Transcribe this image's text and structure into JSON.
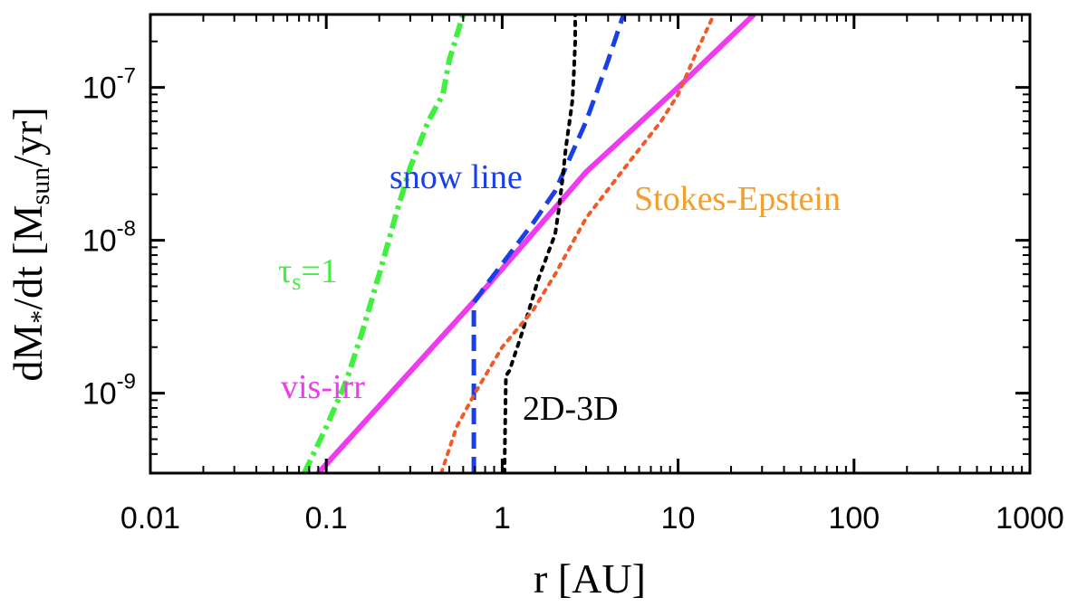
{
  "chart_data": {
    "type": "line",
    "title": "",
    "xlabel": "r [AU]",
    "ylabel_parts": [
      "dM",
      "*",
      "/dt [M",
      "sun",
      "/yr]"
    ],
    "xscale": "log",
    "yscale": "log",
    "xlim": [
      0.01,
      1000
    ],
    "ylim": [
      3e-10,
      3e-07
    ],
    "grid": false,
    "x_ticks": [
      0.01,
      0.1,
      1,
      10,
      100,
      1000
    ],
    "x_tick_labels": [
      "0.01",
      "0.1",
      "1",
      "10",
      "100",
      "1000"
    ],
    "y_ticks": [
      1e-09,
      1e-08,
      1e-07
    ],
    "y_tick_labels": [
      {
        "base": "10",
        "exp": "-9"
      },
      {
        "base": "10",
        "exp": "-8"
      },
      {
        "base": "10",
        "exp": "-7"
      }
    ],
    "series": [
      {
        "name": "vis-irr",
        "color": "#ee3bee",
        "style": "solid",
        "points": [
          [
            0.09,
            3e-10
          ],
          [
            0.68,
            3.9e-09
          ],
          [
            3.0,
            2.8e-08
          ],
          [
            10,
            1e-07
          ],
          [
            27,
            3e-07
          ]
        ]
      },
      {
        "name": "snow line",
        "color": "#1a3ee8",
        "style": "dashed",
        "points": [
          [
            0.69,
            3e-10
          ],
          [
            0.69,
            3.9e-09
          ],
          [
            0.8,
            5e-09
          ],
          [
            1.0,
            7e-09
          ],
          [
            1.5,
            1.3e-08
          ],
          [
            2.0,
            2.1e-08
          ],
          [
            3.0,
            6e-08
          ],
          [
            4.0,
            1.5e-07
          ],
          [
            4.9,
            3e-07
          ]
        ]
      },
      {
        "name": "2D-3D",
        "color": "#000000",
        "style": "dotted",
        "points": [
          [
            1.03,
            3e-10
          ],
          [
            1.05,
            1.3e-09
          ],
          [
            1.1,
            1.4e-09
          ],
          [
            1.3,
            2.5e-09
          ],
          [
            1.6,
            5.5e-09
          ],
          [
            2.0,
            1.1e-08
          ],
          [
            2.1,
            1.6e-08
          ],
          [
            2.2,
            2.5e-08
          ],
          [
            2.3,
            4e-08
          ],
          [
            2.5,
            8e-08
          ],
          [
            2.55,
            1.2e-07
          ],
          [
            2.6,
            2e-07
          ],
          [
            2.6,
            3e-07
          ]
        ]
      },
      {
        "name": "Stokes-Epstein",
        "color": "#f05a28",
        "style": "dotted",
        "points": [
          [
            0.45,
            3e-10
          ],
          [
            0.55,
            6e-10
          ],
          [
            0.7,
            1e-09
          ],
          [
            1.0,
            2e-09
          ],
          [
            1.5,
            3.5e-09
          ],
          [
            2.0,
            6e-09
          ],
          [
            3.0,
            1.4e-08
          ],
          [
            5.0,
            3e-08
          ],
          [
            8.0,
            6e-08
          ],
          [
            10,
            9e-08
          ],
          [
            13,
            1.8e-07
          ],
          [
            16,
            3e-07
          ]
        ]
      },
      {
        "name": "τs=1",
        "color": "#3ff03f",
        "style": "dashdot",
        "points": [
          [
            0.075,
            3e-10
          ],
          [
            0.1,
            6e-10
          ],
          [
            0.13,
            1.2e-09
          ],
          [
            0.16,
            2.5e-09
          ],
          [
            0.2,
            6e-09
          ],
          [
            0.25,
            1.5e-08
          ],
          [
            0.3,
            3e-08
          ],
          [
            0.38,
            6e-08
          ],
          [
            0.46,
            9e-08
          ],
          [
            0.5,
            1.5e-07
          ],
          [
            0.6,
            3e-07
          ]
        ]
      }
    ],
    "annotations": [
      {
        "id": "snow",
        "text": "snow line",
        "color": "#1a3ee8"
      },
      {
        "id": "stokes",
        "text": "Stokes-Epstein",
        "color": "#f0a030"
      },
      {
        "id": "tau",
        "text_main": "τ",
        "text_sub": "s",
        "text_rest": "=1",
        "color": "#3ff03f"
      },
      {
        "id": "visirr",
        "text": "vis-irr",
        "color": "#ee3bee"
      },
      {
        "id": "twod",
        "text": "2D-3D",
        "color": "#000000"
      }
    ]
  }
}
